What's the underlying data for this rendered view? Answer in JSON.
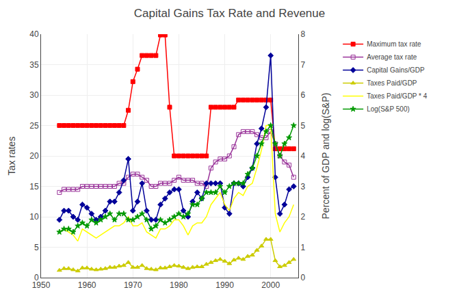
{
  "chart_data": {
    "type": "line",
    "title": "Capital Gains Tax Rate and Revenue",
    "ylabel": "Tax rates",
    "y2label": "Percent of GDP and log(S&P)",
    "x": [
      1954,
      1955,
      1956,
      1957,
      1958,
      1959,
      1960,
      1961,
      1962,
      1963,
      1964,
      1965,
      1966,
      1967,
      1968,
      1969,
      1970,
      1971,
      1972,
      1973,
      1974,
      1975,
      1976,
      1977,
      1978,
      1979,
      1980,
      1981,
      1982,
      1983,
      1984,
      1985,
      1986,
      1987,
      1988,
      1989,
      1990,
      1991,
      1992,
      1993,
      1994,
      1995,
      1996,
      1997,
      1998,
      1999,
      2000,
      2001,
      2002,
      2003,
      2004,
      2005
    ],
    "xlim": [
      1950,
      2006
    ],
    "xticks": [
      1950,
      1960,
      1970,
      1980,
      1990,
      2000
    ],
    "ylim": [
      0,
      40
    ],
    "yticks": [
      0,
      5,
      10,
      15,
      20,
      25,
      30,
      35,
      40
    ],
    "y2lim": [
      0,
      8
    ],
    "y2ticks": [
      0,
      1,
      2,
      3,
      4,
      5,
      6,
      7,
      8
    ],
    "grid": true,
    "legend": "upper right",
    "series": [
      {
        "name": "Maximum tax rate",
        "color": "#ff0000",
        "marker": "square",
        "values": [
          25,
          25,
          25,
          25,
          25,
          25,
          25,
          25,
          25,
          25,
          25,
          25,
          25,
          25,
          25,
          27.5,
          32.21,
          34.25,
          36.5,
          36.5,
          36.5,
          36.5,
          39.875,
          39.875,
          28,
          20,
          20,
          20,
          20,
          20,
          20,
          20,
          20,
          28,
          28,
          28,
          28,
          28,
          28,
          29.19,
          29.19,
          29.19,
          29.19,
          29.19,
          29.19,
          29.19,
          29.19,
          21.17,
          21.17,
          21.17,
          21.17,
          21.17
        ]
      },
      {
        "name": "Average tax rate",
        "color": "#993399",
        "marker": "square-open",
        "values": [
          14,
          14.5,
          14.5,
          14.5,
          14.5,
          15,
          15,
          15,
          15,
          15,
          15,
          15,
          15,
          15.5,
          15.5,
          16.5,
          17,
          17,
          16.5,
          16,
          15,
          15,
          15.5,
          15.5,
          15.5,
          16,
          16.5,
          16,
          16,
          16,
          15.5,
          15.5,
          15,
          18,
          19,
          19.5,
          19.5,
          20,
          21.5,
          23.5,
          24,
          24,
          24,
          23.5,
          23,
          23,
          24,
          22,
          20,
          19,
          18.5,
          16.5
        ]
      },
      {
        "name": "Capital Gains/GDP",
        "color": "#000099",
        "marker": "diamond",
        "values": [
          9.5,
          11,
          11,
          10,
          9.5,
          12,
          11.5,
          10.5,
          9.5,
          10,
          11,
          12.5,
          12.5,
          14,
          16,
          19.5,
          11,
          12.5,
          15.5,
          11,
          9.5,
          9.5,
          12,
          13,
          14,
          14.5,
          14.5,
          11,
          10,
          12.5,
          14,
          13,
          15.5,
          15.5,
          15.5,
          15.5,
          11.5,
          10.5,
          15.5,
          15.5,
          15,
          16.5,
          18,
          22,
          24.5,
          28,
          36.5,
          16.5,
          10.5,
          12,
          14.5,
          15
        ]
      },
      {
        "name": "Taxes Paid/GDP",
        "color": "#cccc00",
        "marker": "triangle-up",
        "values": [
          1.2,
          1.5,
          1.5,
          1.3,
          1.1,
          1.6,
          1.6,
          1.4,
          1.3,
          1.4,
          1.5,
          1.7,
          1.7,
          1.9,
          2.0,
          2.5,
          1.7,
          1.7,
          2.0,
          1.5,
          1.4,
          1.3,
          1.6,
          1.6,
          1.8,
          2.0,
          1.9,
          1.7,
          1.5,
          1.7,
          1.8,
          1.8,
          2.2,
          2.5,
          2.8,
          3.0,
          2.7,
          2.3,
          2.9,
          3.2,
          3.0,
          3.5,
          3.7,
          4.5,
          5.2,
          6.3,
          6.3,
          2.8,
          1.8,
          2.0,
          2.5,
          3.0
        ]
      },
      {
        "name": "Taxes Paid/GDP * 4",
        "color": "#ffff00",
        "marker": "none",
        "values": [
          7.5,
          8,
          7.5,
          7,
          6,
          8,
          7.5,
          7,
          6.5,
          7,
          7.5,
          8,
          8.5,
          8.5,
          9,
          10,
          8.5,
          8.5,
          9,
          7.5,
          7,
          6.5,
          8,
          8,
          8.5,
          9.5,
          9.5,
          8.5,
          7,
          8.5,
          9,
          9,
          10,
          12,
          13,
          14,
          12,
          11,
          13,
          14,
          13.5,
          15,
          15.5,
          18,
          21,
          25,
          25,
          10.5,
          7.5,
          9,
          10,
          12
        ]
      },
      {
        "name": "Log(S&P 500)",
        "color": "#009900",
        "marker": "star",
        "values": [
          7.5,
          8,
          8,
          7.5,
          8.5,
          9,
          8.5,
          9.5,
          9,
          9.5,
          10,
          10.5,
          9.5,
          10.5,
          10.5,
          9.5,
          9.5,
          10,
          10.5,
          9.5,
          8,
          8.5,
          9.5,
          9,
          9.5,
          10,
          10.5,
          10,
          10.5,
          12,
          12,
          13,
          14,
          14,
          14,
          15,
          14,
          15,
          15.5,
          15.5,
          15.5,
          17,
          18,
          20,
          22,
          24,
          25,
          22,
          20,
          22,
          23,
          25
        ]
      }
    ]
  }
}
